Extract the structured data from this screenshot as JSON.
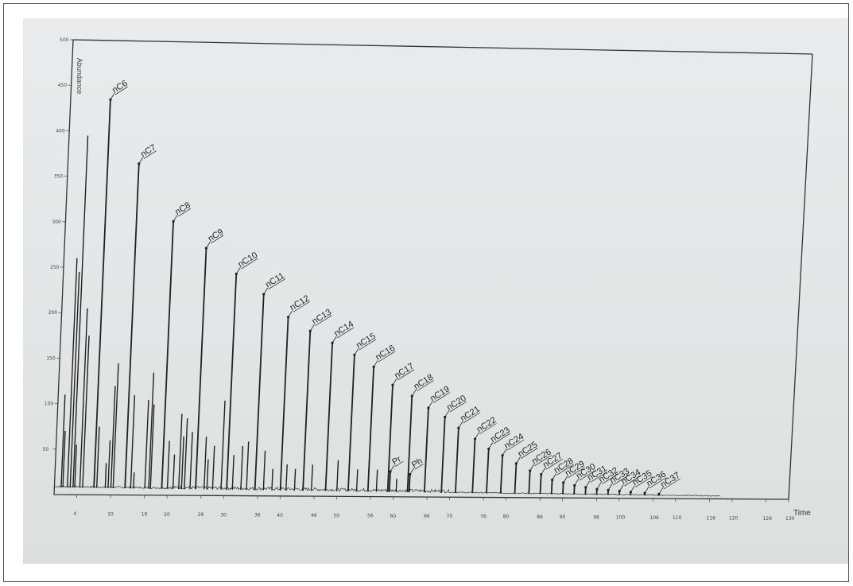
{
  "chart_data": {
    "type": "line",
    "title": "",
    "ylabel": "Abundance",
    "xlabel": "Time",
    "ylim": [
      0,
      500
    ],
    "xlim": [
      0,
      130
    ],
    "y_ticks": [
      "50",
      "100",
      "150",
      "200",
      "250",
      "300",
      "350",
      "400",
      "450",
      "500"
    ],
    "x_ticks": [
      "4",
      "10",
      "16",
      "20",
      "26",
      "30",
      "36",
      "40",
      "46",
      "50",
      "56",
      "60",
      "66",
      "70",
      "76",
      "80",
      "86",
      "90",
      "96",
      "100",
      "106",
      "110",
      "116",
      "120",
      "126",
      "130"
    ],
    "grid": false,
    "baseline": 0,
    "labeled_peaks": [
      {
        "label": "nC6",
        "x": 7.0,
        "y": 435
      },
      {
        "label": "nC7",
        "x": 12.5,
        "y": 365
      },
      {
        "label": "nC8",
        "x": 19.0,
        "y": 302
      },
      {
        "label": "nC9",
        "x": 25.0,
        "y": 273
      },
      {
        "label": "nC10",
        "x": 30.5,
        "y": 245
      },
      {
        "label": "nC11",
        "x": 35.5,
        "y": 223
      },
      {
        "label": "nC12",
        "x": 40.0,
        "y": 198
      },
      {
        "label": "nC13",
        "x": 44.0,
        "y": 183
      },
      {
        "label": "nC14",
        "x": 48.0,
        "y": 170
      },
      {
        "label": "nC15",
        "x": 52.0,
        "y": 157
      },
      {
        "label": "nC16",
        "x": 55.5,
        "y": 144
      },
      {
        "label": "nC17",
        "x": 59.0,
        "y": 124
      },
      {
        "label": "Pr",
        "x": 59.3,
        "y": 28
      },
      {
        "label": "nC18",
        "x": 62.5,
        "y": 112
      },
      {
        "label": "Ph",
        "x": 62.8,
        "y": 25
      },
      {
        "label": "nC19",
        "x": 65.5,
        "y": 99
      },
      {
        "label": "nC20",
        "x": 68.5,
        "y": 89
      },
      {
        "label": "nC21",
        "x": 71.0,
        "y": 77
      },
      {
        "label": "nC22",
        "x": 74.0,
        "y": 65
      },
      {
        "label": "nC23",
        "x": 76.5,
        "y": 54
      },
      {
        "label": "nC24",
        "x": 79.0,
        "y": 47
      },
      {
        "label": "nC25",
        "x": 81.5,
        "y": 38
      },
      {
        "label": "nC26",
        "x": 84.0,
        "y": 30
      },
      {
        "label": "nC27",
        "x": 86.0,
        "y": 26
      },
      {
        "label": "nC28",
        "x": 88.0,
        "y": 20
      },
      {
        "label": "nC29",
        "x": 90.0,
        "y": 17
      },
      {
        "label": "nC30",
        "x": 92.0,
        "y": 14
      },
      {
        "label": "nC31",
        "x": 94.0,
        "y": 12
      },
      {
        "label": "nC32",
        "x": 96.0,
        "y": 10
      },
      {
        "label": "nC33",
        "x": 98.0,
        "y": 9
      },
      {
        "label": "nC34",
        "x": 100.0,
        "y": 8
      },
      {
        "label": "nC35",
        "x": 102.0,
        "y": 7
      },
      {
        "label": "nC36",
        "x": 104.5,
        "y": 6
      },
      {
        "label": "nC37",
        "x": 107.0,
        "y": 5
      }
    ],
    "unlabeled_peaks": [
      {
        "x": 1.2,
        "y": 110
      },
      {
        "x": 1.5,
        "y": 70
      },
      {
        "x": 2.3,
        "y": 260
      },
      {
        "x": 2.8,
        "y": 245
      },
      {
        "x": 3.3,
        "y": 395
      },
      {
        "x": 3.6,
        "y": 55
      },
      {
        "x": 4.5,
        "y": 205
      },
      {
        "x": 5.0,
        "y": 175
      },
      {
        "x": 7.5,
        "y": 75
      },
      {
        "x": 9.0,
        "y": 35
      },
      {
        "x": 9.5,
        "y": 60
      },
      {
        "x": 10.0,
        "y": 120
      },
      {
        "x": 10.4,
        "y": 145
      },
      {
        "x": 13.5,
        "y": 110
      },
      {
        "x": 14.0,
        "y": 25
      },
      {
        "x": 16.0,
        "y": 105
      },
      {
        "x": 16.7,
        "y": 135
      },
      {
        "x": 17.0,
        "y": 100
      },
      {
        "x": 20.0,
        "y": 60
      },
      {
        "x": 21.0,
        "y": 45
      },
      {
        "x": 22.0,
        "y": 90
      },
      {
        "x": 22.5,
        "y": 65
      },
      {
        "x": 23.0,
        "y": 85
      },
      {
        "x": 24.0,
        "y": 70
      },
      {
        "x": 26.5,
        "y": 65
      },
      {
        "x": 27.0,
        "y": 40
      },
      {
        "x": 28.0,
        "y": 55
      },
      {
        "x": 29.5,
        "y": 105
      },
      {
        "x": 31.5,
        "y": 45
      },
      {
        "x": 33.0,
        "y": 55
      },
      {
        "x": 34.0,
        "y": 60
      },
      {
        "x": 37.0,
        "y": 50
      },
      {
        "x": 38.5,
        "y": 30
      },
      {
        "x": 41.0,
        "y": 35
      },
      {
        "x": 42.5,
        "y": 30
      },
      {
        "x": 45.5,
        "y": 35
      },
      {
        "x": 50.0,
        "y": 40
      },
      {
        "x": 53.5,
        "y": 30
      },
      {
        "x": 57.0,
        "y": 30
      },
      {
        "x": 60.5,
        "y": 20
      }
    ]
  }
}
